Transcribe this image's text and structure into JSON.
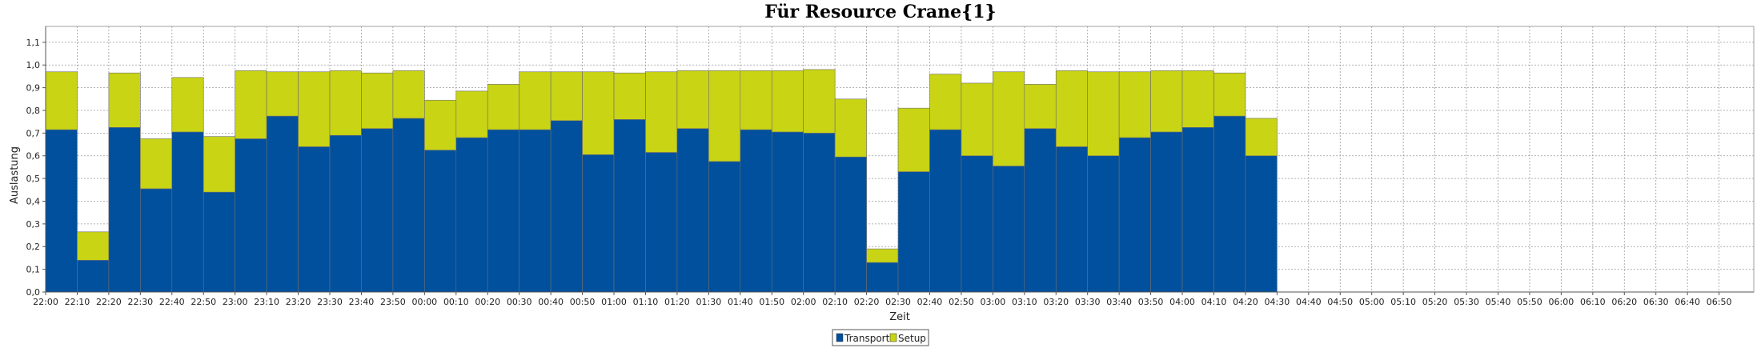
{
  "chart_data": {
    "type": "bar",
    "stacked": true,
    "title": "Für Resource Crane{1}",
    "xlabel": "Zeit",
    "ylabel": "Auslastung",
    "ylim": [
      0,
      1.17
    ],
    "yticks": [
      "0,0",
      "0,1",
      "0,2",
      "0,3",
      "0,4",
      "0,5",
      "0,6",
      "0,7",
      "0,8",
      "0,9",
      "1,0",
      "1,1"
    ],
    "grid": true,
    "legend_position": "bottom-center",
    "x_tick_labels": [
      "22:00",
      "22:10",
      "22:20",
      "22:30",
      "22:40",
      "22:50",
      "23:00",
      "23:10",
      "23:20",
      "23:30",
      "23:40",
      "23:50",
      "00:00",
      "00:10",
      "00:20",
      "00:30",
      "00:40",
      "00:50",
      "01:00",
      "01:10",
      "01:20",
      "01:30",
      "01:40",
      "01:50",
      "02:00",
      "02:10",
      "02:20",
      "02:30",
      "02:40",
      "02:50",
      "03:00",
      "03:10",
      "03:20",
      "03:30",
      "03:40",
      "03:50",
      "04:00",
      "04:10",
      "04:20",
      "04:30",
      "04:40",
      "04:50",
      "05:00",
      "05:10",
      "05:20",
      "05:30",
      "05:40",
      "05:50",
      "06:00",
      "06:10",
      "06:20",
      "06:30",
      "06:40",
      "06:50"
    ],
    "categories": [
      "22:00",
      "22:10",
      "22:20",
      "22:30",
      "22:40",
      "22:50",
      "23:00",
      "23:10",
      "23:20",
      "23:30",
      "23:40",
      "23:50",
      "00:00",
      "00:10",
      "00:20",
      "00:30",
      "00:40",
      "00:50",
      "01:00",
      "01:10",
      "01:20",
      "01:30",
      "01:40",
      "01:50",
      "02:00",
      "02:10",
      "02:20",
      "02:30",
      "02:40",
      "02:50",
      "03:00",
      "03:10",
      "03:20",
      "03:30",
      "03:40",
      "03:50",
      "04:00",
      "04:10",
      "04:20"
    ],
    "series": [
      {
        "name": "Transport",
        "color": "#00509d",
        "values": [
          0.715,
          0.14,
          0.725,
          0.455,
          0.705,
          0.44,
          0.675,
          0.775,
          0.64,
          0.69,
          0.72,
          0.765,
          0.625,
          0.68,
          0.715,
          0.715,
          0.755,
          0.605,
          0.76,
          0.615,
          0.72,
          0.575,
          0.715,
          0.705,
          0.7,
          0.595,
          0.13,
          0.53,
          0.715,
          0.6,
          0.555,
          0.72,
          0.64,
          0.6,
          0.68,
          0.705,
          0.725,
          0.775,
          0.6
        ]
      },
      {
        "name": "Setup",
        "color": "#c8d414",
        "values": [
          0.255,
          0.125,
          0.24,
          0.22,
          0.24,
          0.245,
          0.3,
          0.195,
          0.33,
          0.285,
          0.245,
          0.21,
          0.22,
          0.205,
          0.2,
          0.255,
          0.215,
          0.365,
          0.205,
          0.355,
          0.255,
          0.4,
          0.26,
          0.27,
          0.28,
          0.255,
          0.06,
          0.28,
          0.245,
          0.32,
          0.415,
          0.195,
          0.335,
          0.37,
          0.29,
          0.27,
          0.25,
          0.19,
          0.165
        ]
      }
    ]
  }
}
